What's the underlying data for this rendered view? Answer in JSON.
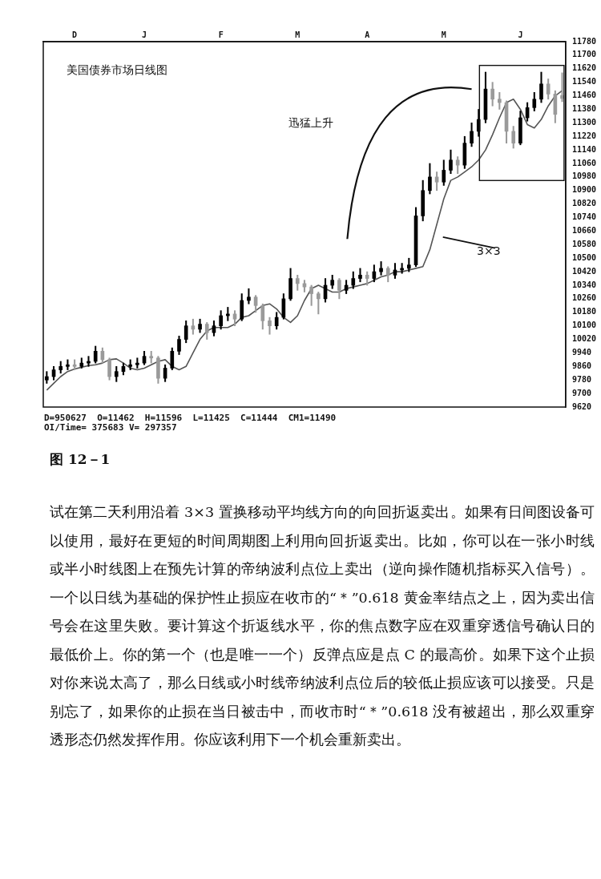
{
  "chart_data": {
    "type": "candlestick",
    "title": "美国债券市场日线图",
    "colors": [
      "#000000",
      "#000000",
      "#000000",
      "#000000",
      "#9a9a9a",
      "#000000",
      "#000000",
      "#000000",
      "#9a9a9a",
      "#9a9a9a",
      "#000000",
      "#000000",
      "#000000",
      "#000000",
      "#000000",
      "#9a9a9a",
      "#9a9a9a",
      "#000000",
      "#000000",
      "#000000",
      "#000000",
      "#9a9a9a",
      "#000000",
      "#9a9a9a",
      "#000000",
      "#000000",
      "#000000",
      "#9a9a9a",
      "#000000",
      "#000000",
      "#9a9a9a",
      "#9a9a9a",
      "#9a9a9a",
      "#000000",
      "#000000",
      "#000000",
      "#9a9a9a",
      "#9a9a9a",
      "#9a9a9a",
      "#9a9a9a",
      "#000000",
      "#000000",
      "#9a9a9a",
      "#000000",
      "#000000",
      "#000000",
      "#9a9a9a",
      "#000000",
      "#000000",
      "#9a9a9a",
      "#000000",
      "#000000",
      "#000000",
      "#000000",
      "#000000",
      "#000000",
      "#9a9a9a",
      "#000000",
      "#000000",
      "#9a9a9a",
      "#000000",
      "#000000",
      "#000000",
      "#000000",
      "#9a9a9a",
      "#9a9a9a",
      "#9a9a9a",
      "#9a9a9a",
      "#000000",
      "#000000",
      "#000000",
      "#000000",
      "#9a9a9a",
      "#9a9a9a",
      "#9a9a9a"
    ],
    "categories": [
      null,
      null,
      null,
      null,
      "D",
      null,
      null,
      null,
      null,
      null,
      null,
      null,
      null,
      null,
      "J",
      null,
      null,
      null,
      null,
      null,
      null,
      null,
      null,
      null,
      null,
      "F",
      null,
      null,
      null,
      null,
      null,
      null,
      null,
      null,
      null,
      null,
      "M",
      null,
      null,
      null,
      null,
      null,
      null,
      null,
      null,
      null,
      "A",
      null,
      null,
      null,
      null,
      null,
      null,
      null,
      null,
      null,
      null,
      "M",
      null,
      null,
      null,
      null,
      null,
      null,
      null,
      null,
      null,
      null,
      "J",
      null,
      null,
      null,
      null,
      null,
      null
    ],
    "ohlc": [
      [
        9780,
        9830,
        9760,
        9800
      ],
      [
        9800,
        9860,
        9780,
        9840
      ],
      [
        9840,
        9890,
        9820,
        9860
      ],
      [
        9860,
        9900,
        9840,
        9870
      ],
      [
        9870,
        9900,
        9840,
        9860
      ],
      [
        9860,
        9910,
        9850,
        9880
      ],
      [
        9880,
        9920,
        9860,
        9890
      ],
      [
        9890,
        9980,
        9880,
        9950
      ],
      [
        9950,
        9970,
        9880,
        9900
      ],
      [
        9900,
        9910,
        9780,
        9800
      ],
      [
        9800,
        9860,
        9770,
        9830
      ],
      [
        9830,
        9880,
        9810,
        9860
      ],
      [
        9860,
        9900,
        9840,
        9870
      ],
      [
        9870,
        9910,
        9850,
        9880
      ],
      [
        9880,
        9950,
        9870,
        9920
      ],
      [
        9920,
        9950,
        9880,
        9910
      ],
      [
        9910,
        9920,
        9760,
        9790
      ],
      [
        9790,
        9870,
        9770,
        9850
      ],
      [
        9850,
        9970,
        9840,
        9950
      ],
      [
        9950,
        10040,
        9930,
        10020
      ],
      [
        10020,
        10130,
        10000,
        10100
      ],
      [
        10100,
        10140,
        10050,
        10080
      ],
      [
        10080,
        10140,
        10060,
        10110
      ],
      [
        10110,
        10120,
        10020,
        10060
      ],
      [
        10060,
        10130,
        10040,
        10100
      ],
      [
        10100,
        10190,
        10080,
        10160
      ],
      [
        10160,
        10210,
        10130,
        10170
      ],
      [
        10170,
        10190,
        10100,
        10140
      ],
      [
        10140,
        10290,
        10130,
        10250
      ],
      [
        10250,
        10320,
        10230,
        10270
      ],
      [
        10270,
        10280,
        10180,
        10220
      ],
      [
        10220,
        10230,
        10080,
        10130
      ],
      [
        10130,
        10150,
        10050,
        10100
      ],
      [
        10100,
        10180,
        10080,
        10150
      ],
      [
        10150,
        10290,
        10140,
        10260
      ],
      [
        10260,
        10440,
        10250,
        10380
      ],
      [
        10380,
        10400,
        10310,
        10350
      ],
      [
        10350,
        10370,
        10300,
        10330
      ],
      [
        10330,
        10340,
        10220,
        10290
      ],
      [
        10290,
        10300,
        10170,
        10260
      ],
      [
        10260,
        10380,
        10240,
        10340
      ],
      [
        10340,
        10400,
        10320,
        10370
      ],
      [
        10370,
        10380,
        10260,
        10310
      ],
      [
        10310,
        10370,
        10290,
        10340
      ],
      [
        10340,
        10420,
        10320,
        10380
      ],
      [
        10380,
        10440,
        10360,
        10400
      ],
      [
        10400,
        10420,
        10340,
        10380
      ],
      [
        10380,
        10460,
        10360,
        10420
      ],
      [
        10420,
        10480,
        10400,
        10440
      ],
      [
        10440,
        10450,
        10360,
        10400
      ],
      [
        10400,
        10470,
        10380,
        10430
      ],
      [
        10430,
        10470,
        10410,
        10440
      ],
      [
        10440,
        10500,
        10420,
        10460
      ],
      [
        10460,
        10800,
        10450,
        10750
      ],
      [
        10750,
        10960,
        10720,
        10900
      ],
      [
        10900,
        11060,
        10880,
        10980
      ],
      [
        10980,
        11010,
        10900,
        10950
      ],
      [
        10950,
        11080,
        10930,
        11020
      ],
      [
        11020,
        11140,
        11000,
        11080
      ],
      [
        11080,
        11100,
        11000,
        11050
      ],
      [
        11050,
        11220,
        11030,
        11180
      ],
      [
        11180,
        11300,
        11160,
        11250
      ],
      [
        11250,
        11380,
        11220,
        11320
      ],
      [
        11320,
        11600,
        11300,
        11500
      ],
      [
        11500,
        11540,
        11400,
        11440
      ],
      [
        11440,
        11480,
        11380,
        11420
      ],
      [
        11420,
        11430,
        11180,
        11250
      ],
      [
        11250,
        11280,
        11150,
        11180
      ],
      [
        11180,
        11370,
        11170,
        11330
      ],
      [
        11330,
        11420,
        11310,
        11390
      ],
      [
        11390,
        11480,
        11370,
        11440
      ],
      [
        11440,
        11600,
        11420,
        11530
      ],
      [
        11530,
        11560,
        11440,
        11470
      ],
      [
        11470,
        11490,
        11300,
        11350
      ],
      [
        11462,
        11596,
        11425,
        11444
      ]
    ],
    "series": [
      {
        "type": "line",
        "color": "#555555",
        "values": [
          9720,
          9760,
          9800,
          9830,
          9845,
          9855,
          9865,
          9870,
          9880,
          9900,
          9905,
          9880,
          9850,
          9840,
          9850,
          9870,
          9890,
          9900,
          9860,
          9840,
          9860,
          9940,
          10020,
          10070,
          10090,
          10090,
          10090,
          10110,
          10150,
          10160,
          10190,
          10220,
          10230,
          10200,
          10150,
          10120,
          10160,
          10250,
          10320,
          10340,
          10320,
          10300,
          10300,
          10320,
          10330,
          10340,
          10350,
          10370,
          10390,
          10400,
          10420,
          10420,
          10430,
          10440,
          10450,
          10550,
          10700,
          10850,
          10960,
          10980,
          11010,
          11040,
          11080,
          11140,
          11230,
          11330,
          11420,
          11440,
          11380,
          11290,
          11270,
          11320,
          11400,
          11460,
          11490
        ]
      }
    ],
    "ylim": [
      9620,
      11780
    ],
    "yticks": [
      11780,
      11700,
      11620,
      11540,
      11460,
      11380,
      11300,
      11220,
      11140,
      11060,
      10980,
      10900,
      10820,
      10740,
      10660,
      10580,
      10500,
      10420,
      10340,
      10260,
      10180,
      10100,
      10020,
      9940,
      9860,
      9780,
      9700,
      9620
    ],
    "grid": false,
    "legend": false,
    "marker": "none",
    "annotations": [
      "迅猛上升",
      "3×3",
      "D=950627  O=11462  H=11596  L=11425  C=11444  CM1=11490",
      "OI/Time= 375683 V= 297357",
      "图 12－1",
      "试在第二天利用沿着 3×3 置换移动平均线方向的向回折返卖出。如果有日间图设备可以使用，最好在更短的时间周期图上利用向回折返卖出。比如，你可以在一张小时线或半小时线图上在预先计算的帝纳波利点位上卖出（逆向操作随机指标买入信号）。一个以日线为基础的保护性止损应在收市的“＊”0.618 黄金率结点之上，因为卖出信号会在这里失败。要计算这个折返线水平，你的焦点数字应在双重穿透信号确认日的最低价上。你的第一个（也是唯一一个）反弹点应是点 C 的最高价。如果下这个止损对你来说太高了，那么日线或小时线帝纳波利点位后的较低止损应该可以接受。只是别忘了，如果你的止损在当日被击中，而收市时“＊”0.618 没有被超出，那么双重穿透形态仍然发挥作用。你应该利用下一个机会重新卖出。"
    ]
  }
}
